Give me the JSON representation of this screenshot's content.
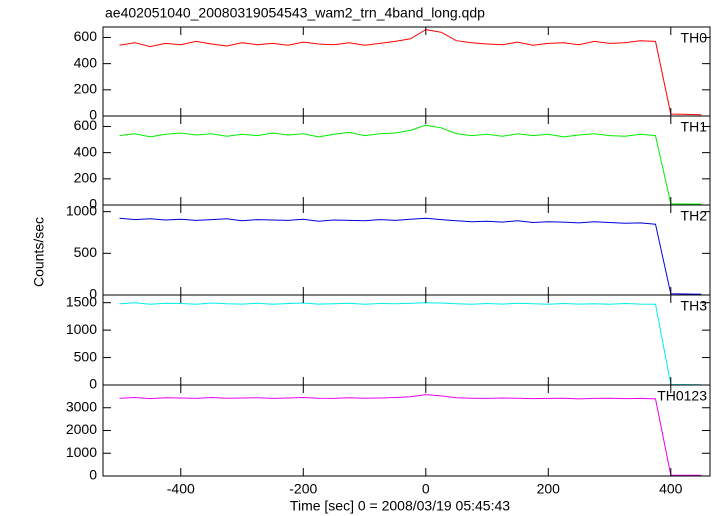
{
  "chart_data": [
    {
      "type": "line",
      "title": "ae402051040_20080319054543_wam2_trn_4band_long.qdp",
      "x": [
        -500,
        -475,
        -450,
        -425,
        -400,
        -375,
        -350,
        -325,
        -300,
        -275,
        -250,
        -225,
        -200,
        -175,
        -150,
        -125,
        -100,
        -75,
        -50,
        -25,
        0,
        25,
        50,
        75,
        100,
        125,
        150,
        175,
        200,
        225,
        250,
        275,
        300,
        325,
        350,
        375,
        400,
        425,
        450
      ],
      "series": [
        {
          "name": "TH0",
          "color": "#ff0000",
          "values": [
            540,
            560,
            530,
            555,
            545,
            570,
            550,
            535,
            560,
            545,
            555,
            540,
            565,
            550,
            545,
            560,
            540,
            555,
            570,
            590,
            660,
            640,
            575,
            560,
            550,
            545,
            565,
            540,
            555,
            560,
            545,
            570,
            555,
            560,
            575,
            570,
            15,
            12,
            10
          ]
        }
      ],
      "xlim": [
        -527,
        464
      ],
      "xticks": [
        -400,
        -200,
        0,
        200,
        400
      ],
      "ylim": [
        0,
        680
      ],
      "yticks": [
        0,
        200,
        400,
        600
      ]
    },
    {
      "type": "line",
      "x": [
        -500,
        -475,
        -450,
        -425,
        -400,
        -375,
        -350,
        -325,
        -300,
        -275,
        -250,
        -225,
        -200,
        -175,
        -150,
        -125,
        -100,
        -75,
        -50,
        -25,
        0,
        25,
        50,
        75,
        100,
        125,
        150,
        175,
        200,
        225,
        250,
        275,
        300,
        325,
        350,
        375,
        400,
        425,
        450
      ],
      "series": [
        {
          "name": "TH1",
          "color": "#00ee00",
          "values": [
            530,
            545,
            520,
            540,
            550,
            535,
            545,
            525,
            540,
            530,
            550,
            535,
            545,
            520,
            540,
            555,
            530,
            545,
            550,
            570,
            610,
            590,
            545,
            530,
            540,
            525,
            545,
            530,
            540,
            520,
            535,
            545,
            530,
            525,
            540,
            530,
            10,
            8,
            8
          ]
        }
      ],
      "xlim": [
        -527,
        464
      ],
      "xticks": [
        -400,
        -200,
        0,
        200,
        400
      ],
      "ylim": [
        0,
        680
      ],
      "yticks": [
        0,
        200,
        400,
        600
      ]
    },
    {
      "type": "line",
      "ylabel": "Counts/sec",
      "x": [
        -500,
        -475,
        -450,
        -425,
        -400,
        -375,
        -350,
        -325,
        -300,
        -275,
        -250,
        -225,
        -200,
        -175,
        -150,
        -125,
        -100,
        -75,
        -50,
        -25,
        0,
        25,
        50,
        75,
        100,
        125,
        150,
        175,
        200,
        225,
        250,
        275,
        300,
        325,
        350,
        375,
        400,
        425,
        450
      ],
      "series": [
        {
          "name": "TH2",
          "color": "#0000dd",
          "values": [
            920,
            905,
            915,
            900,
            910,
            895,
            905,
            915,
            890,
            905,
            900,
            895,
            910,
            885,
            900,
            895,
            890,
            905,
            895,
            910,
            920,
            905,
            890,
            880,
            885,
            875,
            890,
            870,
            880,
            875,
            865,
            880,
            870,
            860,
            865,
            850,
            15,
            12,
            10
          ]
        }
      ],
      "xlim": [
        -527,
        464
      ],
      "xticks": [
        -400,
        -200,
        0,
        200,
        400
      ],
      "ylim": [
        0,
        1080
      ],
      "yticks": [
        0,
        500,
        1000
      ]
    },
    {
      "type": "line",
      "x": [
        -500,
        -475,
        -450,
        -425,
        -400,
        -375,
        -350,
        -325,
        -300,
        -275,
        -250,
        -225,
        -200,
        -175,
        -150,
        -125,
        -100,
        -75,
        -50,
        -25,
        0,
        25,
        50,
        75,
        100,
        125,
        150,
        175,
        200,
        225,
        250,
        275,
        300,
        325,
        350,
        375,
        400,
        425,
        450
      ],
      "series": [
        {
          "name": "TH3",
          "color": "#00eeee",
          "values": [
            1480,
            1500,
            1470,
            1490,
            1485,
            1470,
            1495,
            1480,
            1475,
            1490,
            1470,
            1485,
            1495,
            1475,
            1480,
            1490,
            1470,
            1485,
            1480,
            1490,
            1500,
            1495,
            1480,
            1470,
            1485,
            1475,
            1490,
            1480,
            1470,
            1485,
            1475,
            1480,
            1470,
            1485,
            1475,
            1470,
            10,
            8,
            6
          ]
        }
      ],
      "xlim": [
        -527,
        464
      ],
      "xticks": [
        -400,
        -200,
        0,
        200,
        400
      ],
      "ylim": [
        0,
        1640
      ],
      "yticks": [
        0,
        500,
        1000,
        1500
      ]
    },
    {
      "type": "line",
      "xlabel": "Time [sec] 0 = 2008/03/19 05:45:43",
      "x": [
        -500,
        -475,
        -450,
        -425,
        -400,
        -375,
        -350,
        -325,
        -300,
        -275,
        -250,
        -225,
        -200,
        -175,
        -150,
        -125,
        -100,
        -75,
        -50,
        -25,
        0,
        25,
        50,
        75,
        100,
        125,
        150,
        175,
        200,
        225,
        250,
        275,
        300,
        325,
        350,
        375,
        400,
        425,
        450
      ],
      "series": [
        {
          "name": "TH0123",
          "color": "#ee00ee",
          "values": [
            3420,
            3450,
            3400,
            3440,
            3430,
            3410,
            3450,
            3420,
            3430,
            3440,
            3410,
            3430,
            3450,
            3420,
            3410,
            3440,
            3420,
            3430,
            3450,
            3480,
            3580,
            3520,
            3440,
            3420,
            3410,
            3430,
            3420,
            3400,
            3410,
            3420,
            3390,
            3410,
            3420,
            3400,
            3410,
            3390,
            40,
            35,
            30
          ]
        }
      ],
      "xlim": [
        -527,
        464
      ],
      "xticks": [
        -400,
        -200,
        0,
        200,
        400
      ],
      "ylim": [
        0,
        4000
      ],
      "yticks": [
        0,
        1000,
        2000,
        3000
      ]
    }
  ]
}
